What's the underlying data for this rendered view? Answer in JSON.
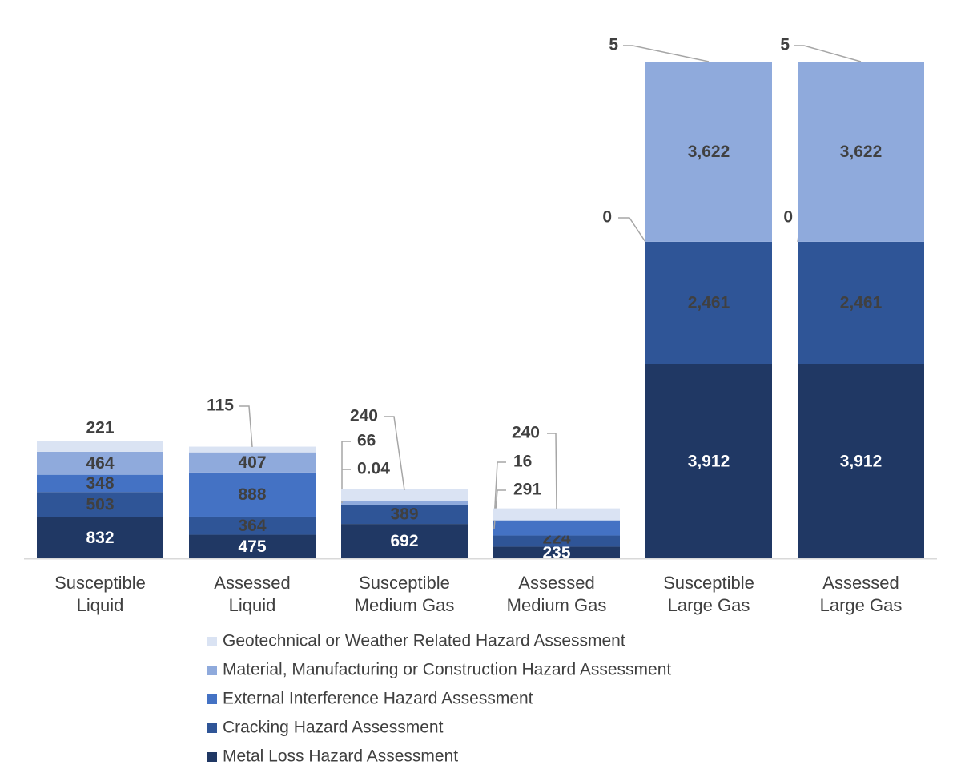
{
  "chart_data": {
    "type": "bar",
    "stacked": true,
    "title": "",
    "xlabel": "",
    "ylabel": "",
    "ylim": [
      0,
      10000
    ],
    "grid": false,
    "legend_position": "bottom",
    "categories": [
      [
        "Susceptible",
        "Liquid"
      ],
      [
        "Assessed",
        "Liquid"
      ],
      [
        "Susceptible",
        "Medium Gas"
      ],
      [
        "Assessed",
        "Medium Gas"
      ],
      [
        "Susceptible",
        "Large Gas"
      ],
      [
        "Assessed",
        "Large Gas"
      ]
    ],
    "series": [
      {
        "name": "Metal Loss Hazard Assessment",
        "color": "#203864",
        "values": [
          832,
          475,
          692,
          235,
          3912,
          3912
        ],
        "labels": [
          "832",
          "475",
          "692",
          "235",
          "3,912",
          "3,912"
        ]
      },
      {
        "name": "Cracking Hazard Assessment",
        "color": "#2F5597",
        "values": [
          503,
          364,
          389,
          224,
          2461,
          2461
        ],
        "labels": [
          "503",
          "364",
          "389",
          "224",
          "2,461",
          "2,461"
        ]
      },
      {
        "name": "External Interference Hazard Assessment",
        "color": "#4472C4",
        "values": [
          348,
          888,
          0.04,
          291,
          0,
          0
        ],
        "labels": [
          "348",
          "888",
          "0.04",
          "291",
          "0",
          "0"
        ]
      },
      {
        "name": "Material, Manufacturing or Construction Hazard Assessment",
        "color": "#8FAADC",
        "values": [
          464,
          407,
          66,
          16,
          3622,
          3622
        ],
        "labels": [
          "464",
          "407",
          "66",
          "16",
          "3,622",
          "3,622"
        ]
      },
      {
        "name": "Geotechnical or Weather Related Hazard Assessment",
        "color": "#DAE3F3",
        "values": [
          221,
          115,
          240,
          240,
          5,
          5
        ],
        "labels": [
          "221",
          "115",
          "240",
          "240",
          "5",
          "5"
        ]
      }
    ]
  }
}
